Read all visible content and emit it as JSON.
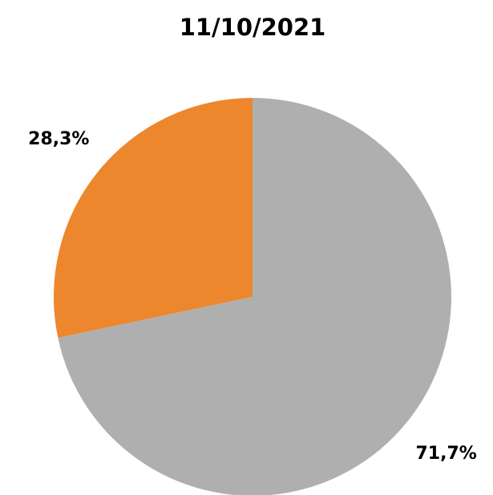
{
  "chart_data": {
    "type": "pie",
    "title": "11/10/2021",
    "values": [
      71.7,
      28.3
    ],
    "value_labels": [
      "71,7%",
      "28,3%"
    ],
    "colors": [
      "#afafaf",
      "#ed872d"
    ]
  }
}
